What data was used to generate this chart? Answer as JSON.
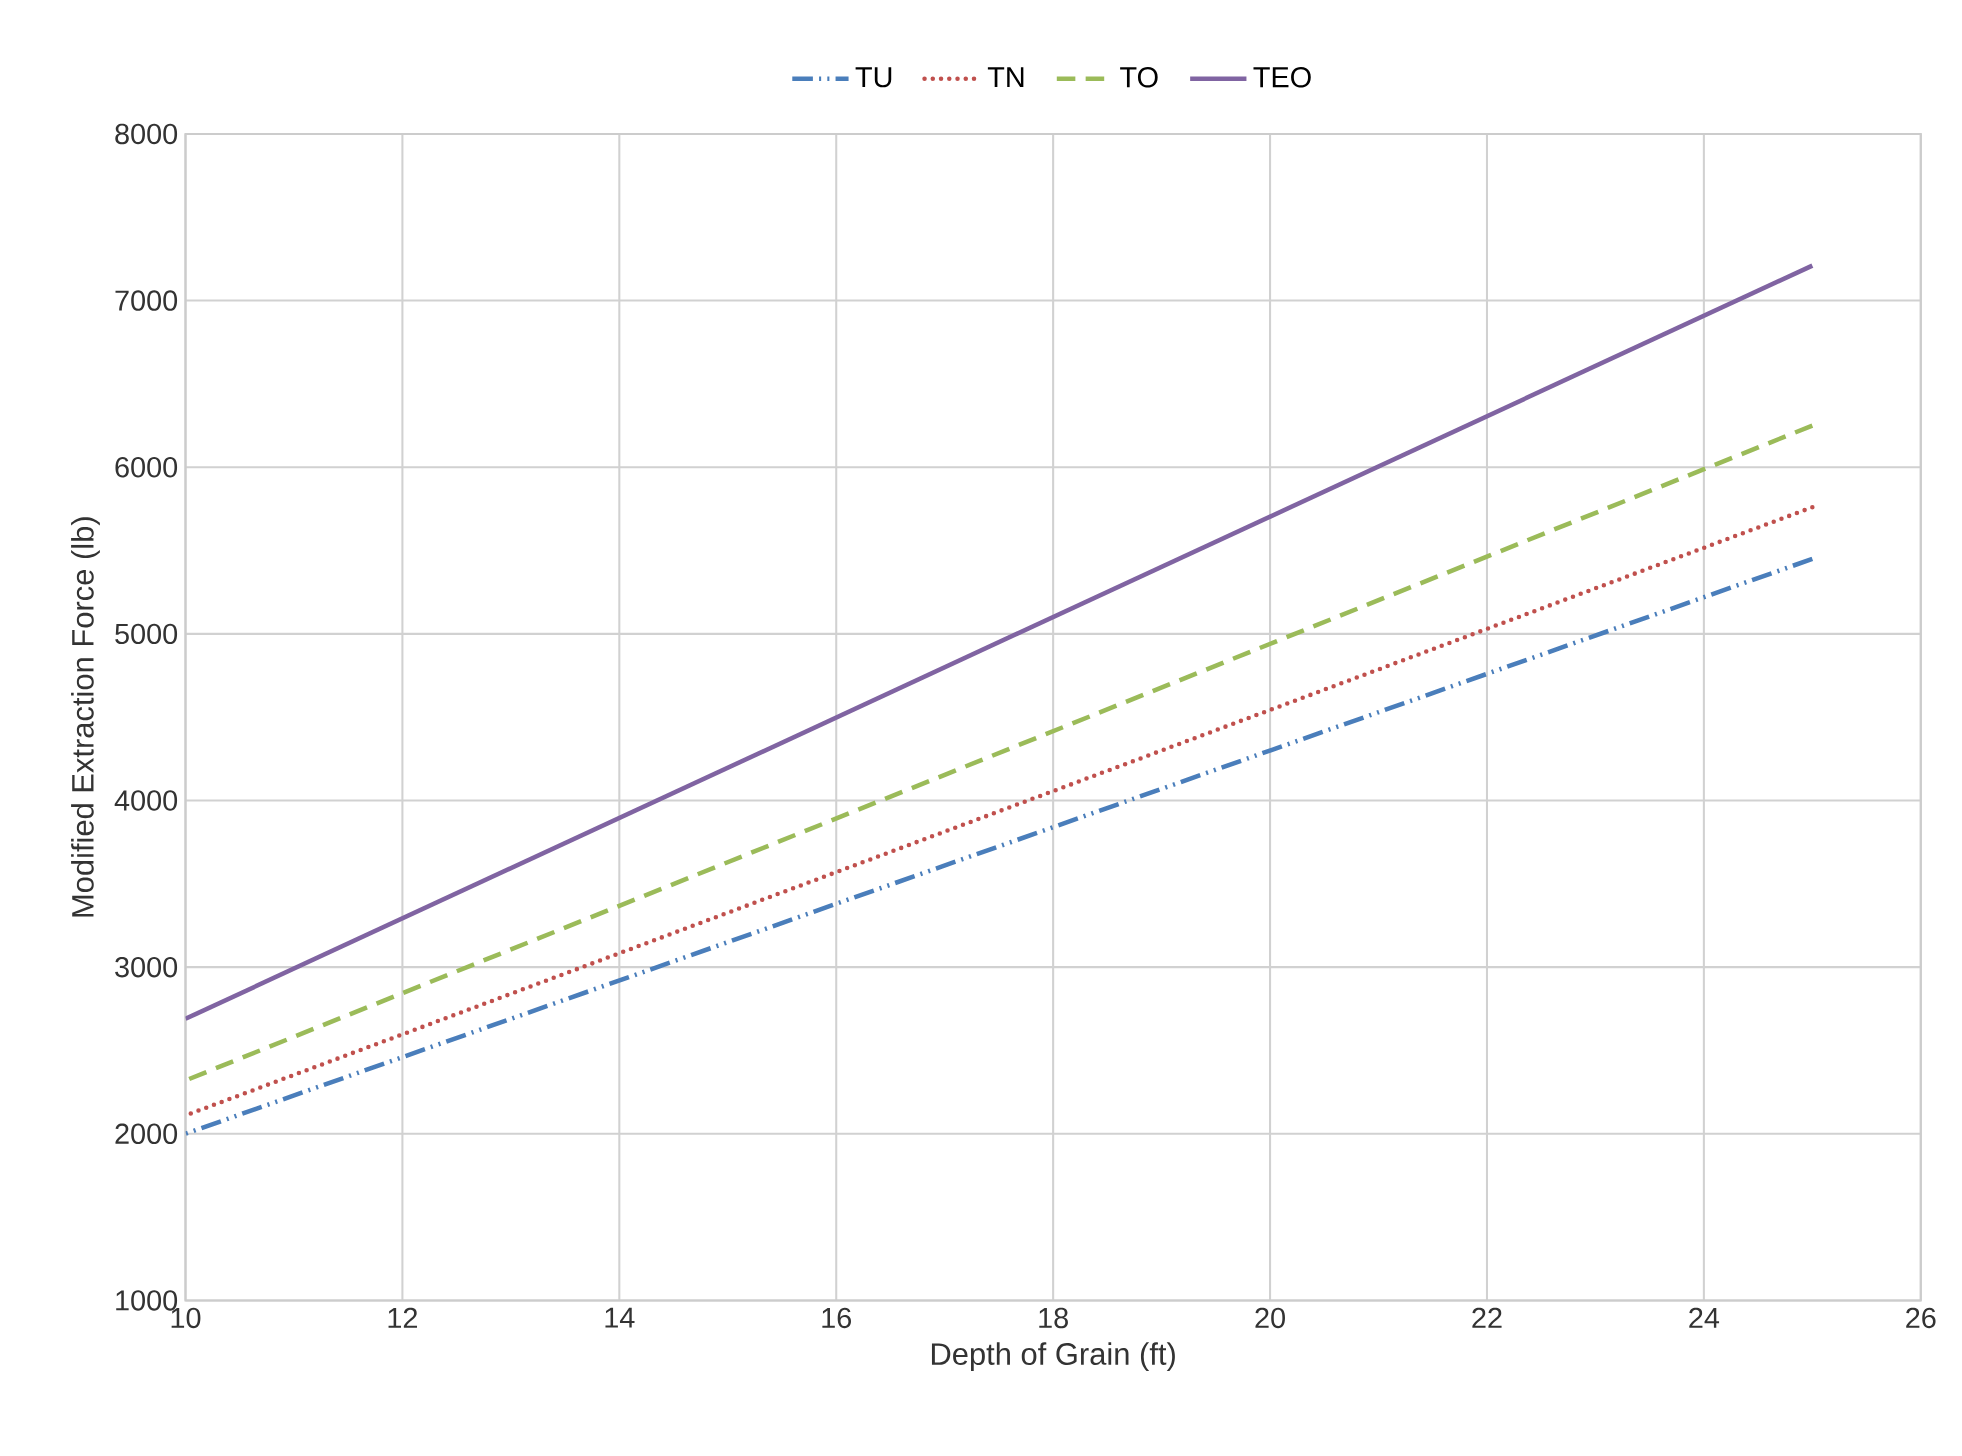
{
  "chart_data": {
    "type": "line",
    "xlabel": "Depth of Grain (ft)",
    "ylabel": "Modified  Extraction Force (lb)",
    "xlim": [
      10,
      26
    ],
    "ylim": [
      1000,
      8000
    ],
    "xticks": [
      10,
      12,
      14,
      16,
      18,
      20,
      22,
      24,
      26
    ],
    "yticks": [
      1000,
      2000,
      3000,
      4000,
      5000,
      6000,
      7000,
      8000
    ],
    "grid": true,
    "x": [
      10,
      25
    ],
    "legend": "top",
    "marker": "none",
    "series": [
      {
        "name": "TU",
        "color": "#4a7ebb",
        "line_style": "dashdotdot",
        "values": [
          2000,
          5450
        ]
      },
      {
        "name": "TN",
        "color": "#c0504d",
        "line_style": "dotted",
        "values": [
          2110,
          5760
        ]
      },
      {
        "name": "TO",
        "color": "#9bbb59",
        "line_style": "dashed",
        "values": [
          2320,
          6250
        ]
      },
      {
        "name": "TEO",
        "color": "#8064a2",
        "line_style": "solid",
        "values": [
          2690,
          7210
        ]
      }
    ]
  }
}
